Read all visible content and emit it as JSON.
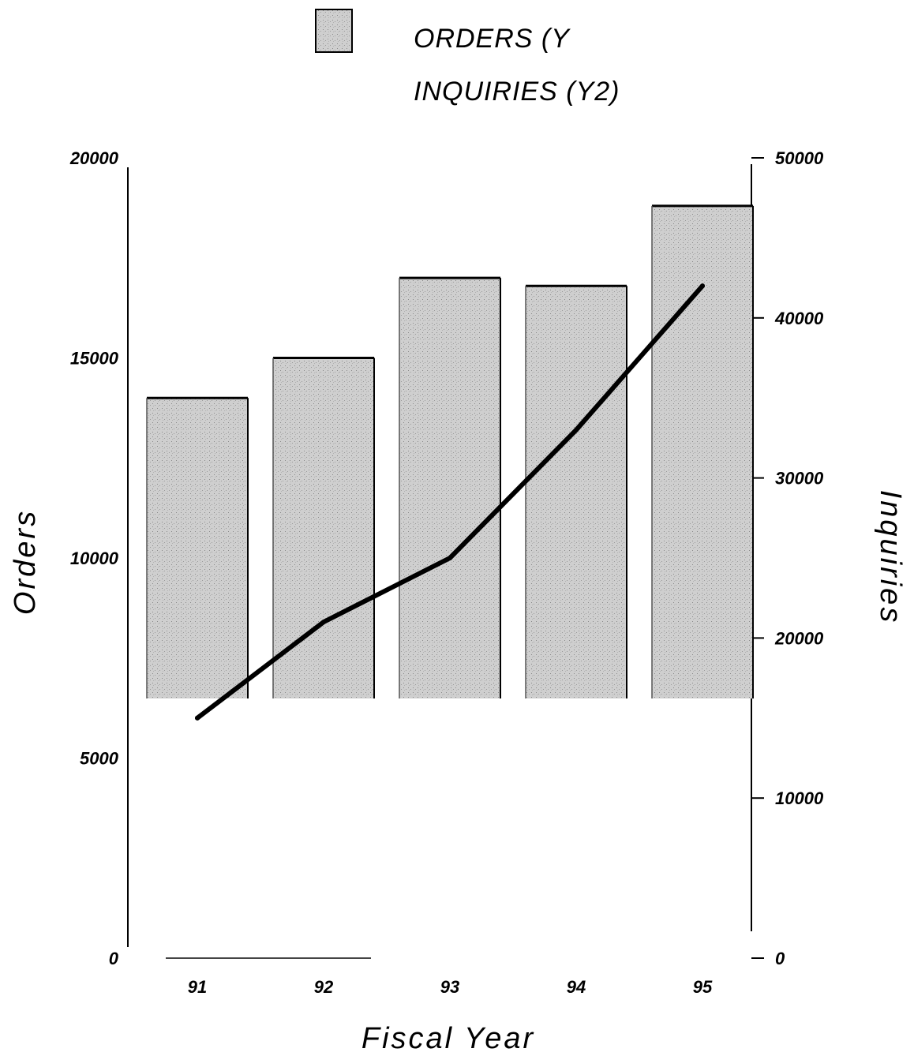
{
  "chart_data": {
    "type": "bar",
    "categories": [
      "91",
      "92",
      "93",
      "94",
      "95"
    ],
    "series": [
      {
        "name": "ORDERS (Y",
        "kind": "bar",
        "axis": "y",
        "values": [
          14000,
          15000,
          17000,
          16800,
          18800
        ]
      },
      {
        "name": "INQUIRIES (Y2)",
        "kind": "line",
        "axis": "y2",
        "values": [
          15000,
          21000,
          25000,
          33000,
          42000
        ]
      }
    ],
    "xlabel": "Fiscal Year",
    "ylabel": "Orders",
    "y2label": "Inquiries",
    "ylim": [
      0,
      20000
    ],
    "y2lim": [
      0,
      50000
    ],
    "yticks": [
      "0",
      "5000",
      "10000",
      "15000",
      "20000"
    ],
    "y2ticks": [
      "0",
      "10000",
      "20000",
      "30000",
      "40000",
      "50000"
    ],
    "legend": {
      "placement": "top-center",
      "entries": [
        "ORDERS (Y",
        "INQUIRIES (Y2)"
      ]
    },
    "colors": {
      "bar_fill": "#c4c4c4",
      "line": "#000000"
    },
    "grid": false
  }
}
